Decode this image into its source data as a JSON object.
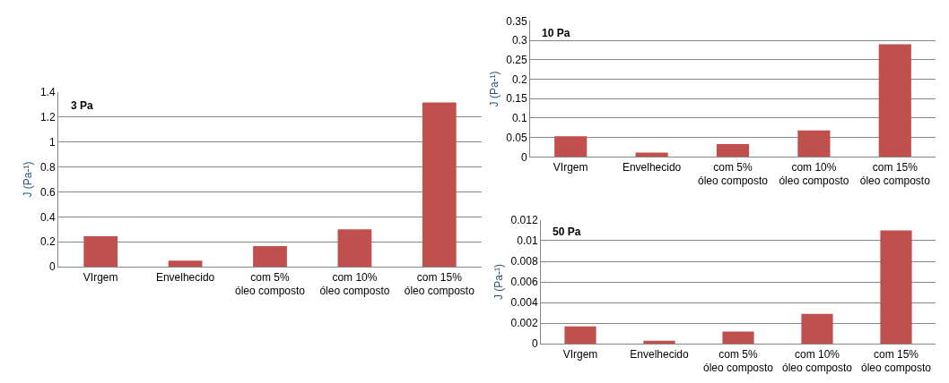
{
  "chart_data": [
    {
      "type": "bar",
      "title": "3 Pa",
      "ylabel": "J (Pa-¹)",
      "categories": [
        "VIrgem",
        "Envelhecido",
        "com 5%\nóleo composto",
        "com 10%\nóleo composto",
        "com 15%\nóleo composto"
      ],
      "values": [
        0.245,
        0.05,
        0.165,
        0.3,
        1.315
      ],
      "color": "#c0504d",
      "ylim": [
        0,
        1.4
      ],
      "yticks": [
        0,
        0.2,
        0.4,
        0.6,
        0.8,
        1,
        1.2,
        1.4
      ],
      "grid": "y"
    },
    {
      "type": "bar",
      "title": "10 Pa",
      "ylabel": "J (Pa-¹)",
      "categories": [
        "VIrgem",
        "Envelhecido",
        "com 5%\nóleo composto",
        "com 10%\nóleo composto",
        "com 15%\nóleo composto"
      ],
      "values": [
        0.053,
        0.011,
        0.033,
        0.068,
        0.29
      ],
      "color": "#c0504d",
      "ylim": [
        0,
        0.35
      ],
      "yticks": [
        0,
        0.05,
        0.1,
        0.15,
        0.2,
        0.25,
        0.3,
        0.35
      ],
      "grid": "y"
    },
    {
      "type": "bar",
      "title": "50 Pa",
      "ylabel": "J (Pa-¹)",
      "categories": [
        "VIrgem",
        "Envelhecido",
        "com 5%\nóleo composto",
        "com 10%\nóleo composto",
        "com 15%\nóleo composto"
      ],
      "values": [
        0.0017,
        0.0003,
        0.0012,
        0.0029,
        0.011
      ],
      "color": "#c0504d",
      "ylim": [
        0,
        0.012
      ],
      "yticks": [
        0,
        0.002,
        0.004,
        0.006,
        0.008,
        0.01,
        0.012
      ],
      "grid": "y"
    }
  ]
}
